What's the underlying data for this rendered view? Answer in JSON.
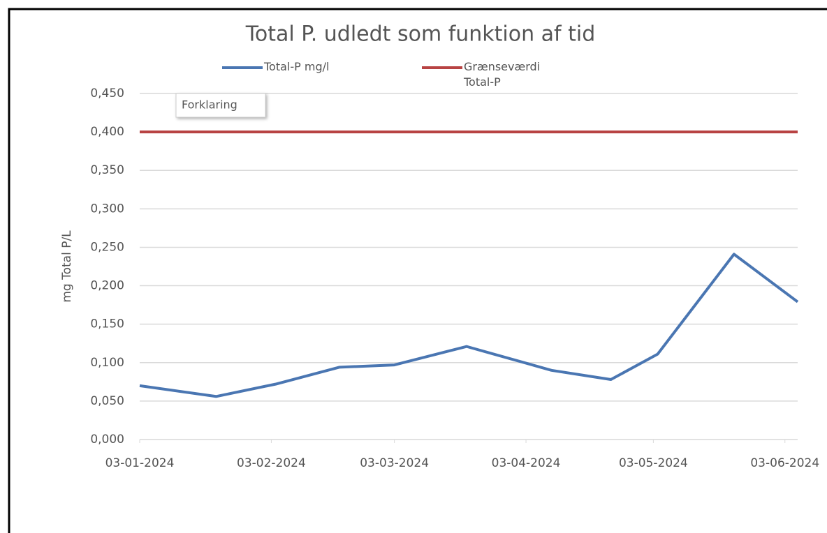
{
  "chart_data": {
    "type": "line",
    "title": "Total P. udledt som funktion af tid",
    "y_label": "mg Total P/L",
    "annotation": "Forklaring",
    "x": [
      "03-01-2024",
      "21-01-2024",
      "04-02-2024",
      "19-02-2024",
      "03-03-2024",
      "20-03-2024",
      "09-04-2024",
      "23-04-2024",
      "04-05-2024",
      "22-05-2024",
      "06-06-2024"
    ],
    "series": [
      {
        "name": "Total-P mg/l",
        "color": "#4a76b2",
        "values": [
          0.07,
          0.056,
          0.072,
          0.094,
          0.097,
          0.121,
          0.09,
          0.078,
          0.111,
          0.241,
          0.179
        ]
      },
      {
        "name": "Grænseværdi Total-P",
        "color": "#b84343",
        "values": [
          0.4,
          0.4,
          0.4,
          0.4,
          0.4,
          0.4,
          0.4,
          0.4,
          0.4,
          0.4,
          0.4
        ]
      }
    ],
    "xlim": [
      "03-01-2024",
      "06-06-2024"
    ],
    "xticks": [
      "03-01-2024",
      "03-02-2024",
      "03-03-2024",
      "03-04-2024",
      "03-05-2024",
      "03-06-2024"
    ],
    "ylim": [
      0,
      0.45
    ],
    "yticks": [
      {
        "value": 0,
        "label": "0,000"
      },
      {
        "value": 0.05,
        "label": "0,050"
      },
      {
        "value": 0.1,
        "label": "0,100"
      },
      {
        "value": 0.15,
        "label": "0,150"
      },
      {
        "value": 0.2,
        "label": "0,200"
      },
      {
        "value": 0.25,
        "label": "0,250"
      },
      {
        "value": 0.3,
        "label": "0,300"
      },
      {
        "value": 0.35,
        "label": "0,350"
      },
      {
        "value": 0.4,
        "label": "0,400"
      },
      {
        "value": 0.45,
        "label": "0,450"
      }
    ],
    "grid": true
  }
}
